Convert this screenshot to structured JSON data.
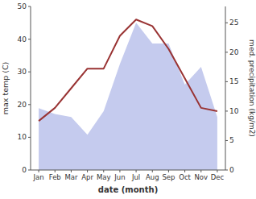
{
  "chart_data": {
    "type": "line",
    "xlabel": "date (month)",
    "ylabel": "max temp (C)",
    "y2label": "med. precipitation (kg/m2)",
    "categories": [
      "Jan",
      "Feb",
      "Mar",
      "Apr",
      "May",
      "Jun",
      "Jul",
      "Aug",
      "Sep",
      "Oct",
      "Nov",
      "Dec"
    ],
    "series": [
      {
        "type": "area",
        "axis": "y2",
        "color": "#c5cbee",
        "values": [
          10.5,
          9.5,
          9,
          6,
          10,
          18,
          25,
          21.5,
          21.5,
          14.5,
          17.5,
          9
        ]
      },
      {
        "type": "line",
        "color": "#993333",
        "values": [
          15,
          19,
          25,
          31,
          31,
          41,
          46,
          44,
          37,
          28,
          19,
          18
        ]
      }
    ],
    "ylim": [
      0,
      50
    ],
    "yticks": [
      0,
      10,
      20,
      30,
      40,
      50
    ],
    "y2lim": [
      0,
      27.78
    ],
    "y2ticks": [
      0,
      5,
      10,
      15,
      20,
      25
    ]
  }
}
